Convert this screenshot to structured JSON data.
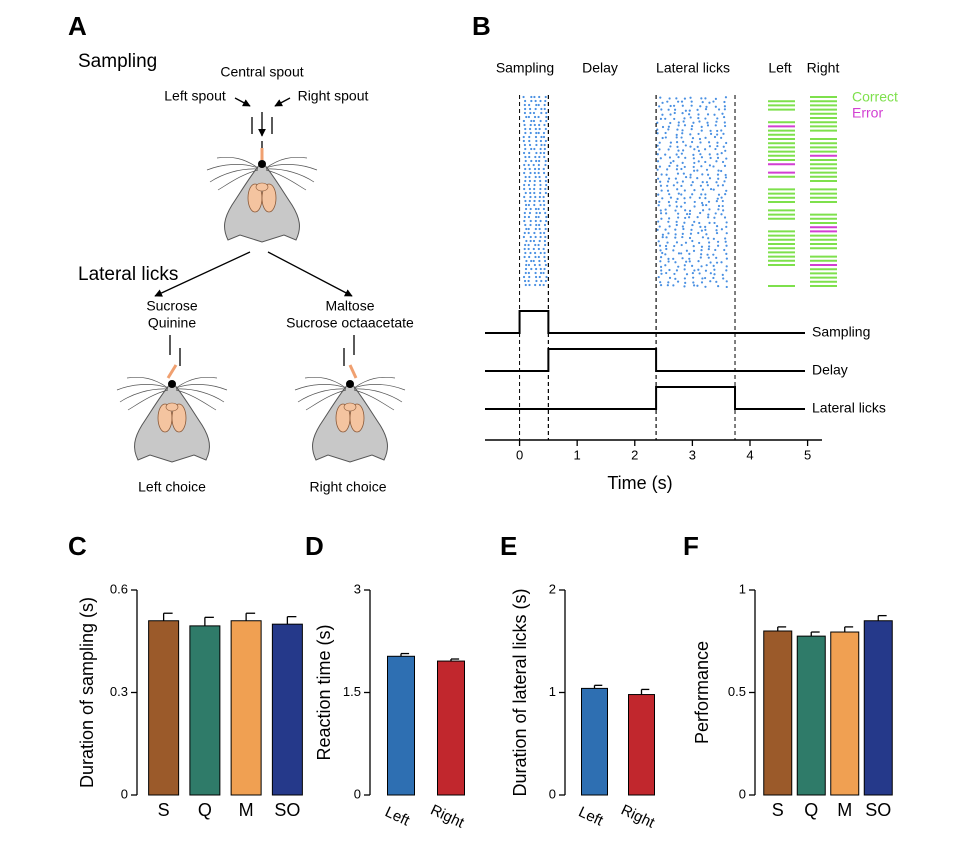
{
  "panel_a": {
    "letter": "A",
    "sampling_title": "Sampling",
    "central_spout": "Central spout",
    "left_spout": "Left spout",
    "right_spout": "Right spout",
    "lateral_title": "Lateral licks",
    "left_tastants": [
      "Sucrose",
      "Quinine"
    ],
    "right_tastants": [
      "Maltose",
      "Sucrose octaacetate"
    ],
    "left_choice": "Left choice",
    "right_choice": "Right choice"
  },
  "panel_b": {
    "letter": "B",
    "headers": [
      "Sampling",
      "Delay",
      "Lateral licks",
      "Left",
      "Right"
    ],
    "legend": [
      {
        "name": "Correct",
        "color": "#7ee04c"
      },
      {
        "name": "Error",
        "color": "#d23fd2"
      }
    ],
    "raster_color": "#4a90e2",
    "traces": [
      {
        "name": "Sampling",
        "start": 0,
        "end": 0.5
      },
      {
        "name": "Delay",
        "start": 0.5,
        "end": 2.37
      },
      {
        "name": "Lateral licks",
        "start": 2.37,
        "end": 3.74
      }
    ],
    "xlim": [
      -0.6,
      5.25
    ],
    "xticks": [
      0,
      1,
      2,
      3,
      4,
      5
    ],
    "xlabel": "Time (s)"
  },
  "chart_data": [
    {
      "type": "bar",
      "panel": "C",
      "ylabel": "Duration of sampling (s)",
      "categories": [
        "S",
        "Q",
        "M",
        "SO"
      ],
      "values": [
        0.51,
        0.495,
        0.51,
        0.5
      ],
      "errors": [
        0.022,
        0.025,
        0.022,
        0.022
      ],
      "colors": [
        "#9b5a2a",
        "#2f7b69",
        "#f0a052",
        "#25398a"
      ],
      "ylim": [
        0,
        0.6
      ],
      "yticks": [
        0,
        0.3,
        0.6
      ]
    },
    {
      "type": "bar",
      "panel": "D",
      "ylabel": "Reaction time (s)",
      "categories": [
        "Left",
        "Right"
      ],
      "values": [
        2.03,
        1.96
      ],
      "errors": [
        0.04,
        0.03
      ],
      "colors": [
        "#2e6fb2",
        "#c1272d"
      ],
      "ylim": [
        0,
        3
      ],
      "yticks": [
        0,
        1.5,
        3
      ]
    },
    {
      "type": "bar",
      "panel": "E",
      "ylabel": "Duration of lateral licks (s)",
      "categories": [
        "Left",
        "Right"
      ],
      "values": [
        1.04,
        0.98
      ],
      "errors": [
        0.03,
        0.05
      ],
      "colors": [
        "#2e6fb2",
        "#c1272d"
      ],
      "ylim": [
        0,
        2
      ],
      "yticks": [
        0,
        1,
        2
      ]
    },
    {
      "type": "bar",
      "panel": "F",
      "ylabel": "Performance",
      "categories": [
        "S",
        "Q",
        "M",
        "SO"
      ],
      "values": [
        0.8,
        0.775,
        0.795,
        0.85
      ],
      "errors": [
        0.02,
        0.02,
        0.025,
        0.025
      ],
      "colors": [
        "#9b5a2a",
        "#2f7b69",
        "#f0a052",
        "#25398a"
      ],
      "ylim": [
        0,
        1
      ],
      "yticks": [
        0,
        0.5,
        1
      ]
    }
  ]
}
